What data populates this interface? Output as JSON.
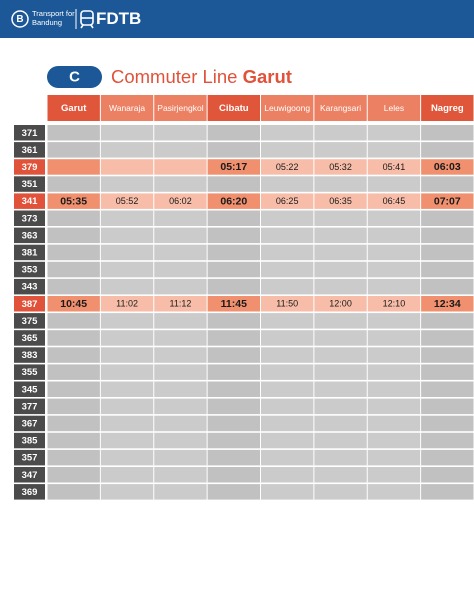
{
  "header": {
    "logo_letter": "B",
    "org_lines": [
      "Transport for",
      "Bandung"
    ],
    "brand": "FDTB"
  },
  "title": {
    "badge": "C",
    "text": "Commuter Line",
    "emphasis": "Garut"
  },
  "table": {
    "columns": [
      {
        "name": "Garut",
        "major": true
      },
      {
        "name": "Wanaraja",
        "major": false
      },
      {
        "name": "Pasirjengkol",
        "major": false
      },
      {
        "name": "Cibatu",
        "major": true
      },
      {
        "name": "Leuwigoong",
        "major": false
      },
      {
        "name": "Karangsari",
        "major": false
      },
      {
        "name": "Leles",
        "major": false
      },
      {
        "name": "Nagreg",
        "major": true
      }
    ],
    "rows": [
      {
        "train": "371",
        "highlighted": false,
        "times": [
          null,
          null,
          null,
          null,
          null,
          null,
          null,
          null
        ]
      },
      {
        "train": "361",
        "highlighted": false,
        "times": [
          null,
          null,
          null,
          null,
          null,
          null,
          null,
          null
        ]
      },
      {
        "train": "379",
        "highlighted": true,
        "times": [
          null,
          null,
          null,
          "05:17",
          "05:22",
          "05:32",
          "05:41",
          "06:03"
        ]
      },
      {
        "train": "351",
        "highlighted": false,
        "times": [
          null,
          null,
          null,
          null,
          null,
          null,
          null,
          null
        ]
      },
      {
        "train": "341",
        "highlighted": true,
        "times": [
          "05:35",
          "05:52",
          "06:02",
          "06:20",
          "06:25",
          "06:35",
          "06:45",
          "07:07"
        ]
      },
      {
        "train": "373",
        "highlighted": false,
        "times": [
          null,
          null,
          null,
          null,
          null,
          null,
          null,
          null
        ]
      },
      {
        "train": "363",
        "highlighted": false,
        "times": [
          null,
          null,
          null,
          null,
          null,
          null,
          null,
          null
        ]
      },
      {
        "train": "381",
        "highlighted": false,
        "times": [
          null,
          null,
          null,
          null,
          null,
          null,
          null,
          null
        ]
      },
      {
        "train": "353",
        "highlighted": false,
        "times": [
          null,
          null,
          null,
          null,
          null,
          null,
          null,
          null
        ]
      },
      {
        "train": "343",
        "highlighted": false,
        "times": [
          null,
          null,
          null,
          null,
          null,
          null,
          null,
          null
        ]
      },
      {
        "train": "387",
        "highlighted": true,
        "times": [
          "10:45",
          "11:02",
          "11:12",
          "11:45",
          "11:50",
          "12:00",
          "12:10",
          "12:34"
        ]
      },
      {
        "train": "375",
        "highlighted": false,
        "times": [
          null,
          null,
          null,
          null,
          null,
          null,
          null,
          null
        ]
      },
      {
        "train": "365",
        "highlighted": false,
        "times": [
          null,
          null,
          null,
          null,
          null,
          null,
          null,
          null
        ]
      },
      {
        "train": "383",
        "highlighted": false,
        "times": [
          null,
          null,
          null,
          null,
          null,
          null,
          null,
          null
        ]
      },
      {
        "train": "355",
        "highlighted": false,
        "times": [
          null,
          null,
          null,
          null,
          null,
          null,
          null,
          null
        ]
      },
      {
        "train": "345",
        "highlighted": false,
        "times": [
          null,
          null,
          null,
          null,
          null,
          null,
          null,
          null
        ]
      },
      {
        "train": "377",
        "highlighted": false,
        "times": [
          null,
          null,
          null,
          null,
          null,
          null,
          null,
          null
        ]
      },
      {
        "train": "367",
        "highlighted": false,
        "times": [
          null,
          null,
          null,
          null,
          null,
          null,
          null,
          null
        ]
      },
      {
        "train": "385",
        "highlighted": false,
        "times": [
          null,
          null,
          null,
          null,
          null,
          null,
          null,
          null
        ]
      },
      {
        "train": "357",
        "highlighted": false,
        "times": [
          null,
          null,
          null,
          null,
          null,
          null,
          null,
          null
        ]
      },
      {
        "train": "347",
        "highlighted": false,
        "times": [
          null,
          null,
          null,
          null,
          null,
          null,
          null,
          null
        ]
      },
      {
        "train": "369",
        "highlighted": false,
        "times": [
          null,
          null,
          null,
          null,
          null,
          null,
          null,
          null
        ]
      }
    ]
  }
}
